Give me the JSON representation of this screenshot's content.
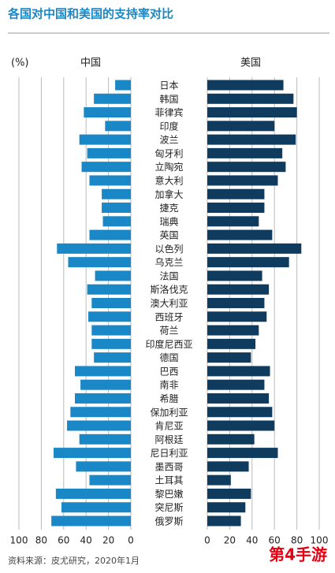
{
  "chart_data": {
    "type": "butterfly",
    "title": "各国对中国和美国的支持率对比",
    "unit_label": "(%)",
    "categories": [
      "日本",
      "韩国",
      "菲律宾",
      "印度",
      "波兰",
      "匈牙利",
      "立陶宛",
      "意大利",
      "加拿大",
      "捷克",
      "瑞典",
      "英国",
      "以色列",
      "乌克兰",
      "法国",
      "斯洛伐克",
      "澳大利亚",
      "西班牙",
      "荷兰",
      "印度尼西亚",
      "德国",
      "巴西",
      "南非",
      "希腊",
      "保加利亚",
      "肯尼亚",
      "阿根廷",
      "尼日利亚",
      "墨西哥",
      "土耳其",
      "黎巴嫩",
      "突尼斯",
      "俄罗斯"
    ],
    "series": [
      {
        "name": "中国",
        "color": "#1a87c6",
        "side": "left",
        "xlim": [
          0,
          100
        ],
        "xticks": [
          100,
          80,
          60,
          40,
          20,
          0
        ],
        "values": [
          14,
          33,
          42,
          23,
          46,
          39,
          44,
          37,
          26,
          26,
          25,
          37,
          66,
          56,
          32,
          39,
          35,
          38,
          35,
          35,
          33,
          50,
          45,
          50,
          54,
          57,
          46,
          69,
          49,
          37,
          67,
          62,
          71
        ]
      },
      {
        "name": "美国",
        "color": "#0f3b5e",
        "side": "right",
        "xlim": [
          0,
          100
        ],
        "xticks": [
          0,
          20,
          40,
          60,
          80,
          100
        ],
        "values": [
          68,
          77,
          80,
          60,
          79,
          67,
          70,
          63,
          51,
          51,
          46,
          58,
          84,
          73,
          49,
          55,
          51,
          53,
          46,
          43,
          39,
          56,
          51,
          55,
          58,
          60,
          42,
          63,
          37,
          21,
          39,
          34,
          30
        ]
      }
    ],
    "grid": true,
    "source": "资料来源：皮尤研究，2020年1月",
    "watermark": "第4手游"
  }
}
